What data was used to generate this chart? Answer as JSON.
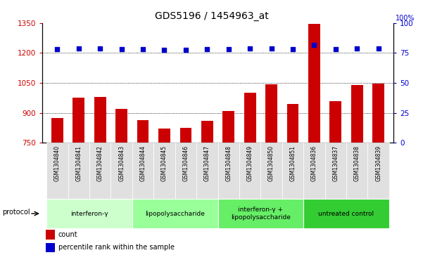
{
  "title": "GDS5196 / 1454963_at",
  "samples": [
    "GSM1304840",
    "GSM1304841",
    "GSM1304842",
    "GSM1304843",
    "GSM1304844",
    "GSM1304845",
    "GSM1304846",
    "GSM1304847",
    "GSM1304848",
    "GSM1304849",
    "GSM1304850",
    "GSM1304851",
    "GSM1304836",
    "GSM1304837",
    "GSM1304838",
    "GSM1304839"
  ],
  "bar_values": [
    875,
    975,
    978,
    920,
    865,
    820,
    825,
    860,
    910,
    1000,
    1042,
    945,
    1345,
    960,
    1040,
    1048
  ],
  "percentile_y": [
    1220,
    1222,
    1222,
    1220,
    1218,
    1215,
    1215,
    1218,
    1220,
    1222,
    1222,
    1220,
    1240,
    1220,
    1222,
    1222
  ],
  "groups": [
    {
      "label": "interferon-γ",
      "start": 0,
      "end": 4,
      "color": "#ccffcc"
    },
    {
      "label": "lipopolysaccharide",
      "start": 4,
      "end": 8,
      "color": "#99ff99"
    },
    {
      "label": "interferon-γ +\nlipopolysaccharide",
      "start": 8,
      "end": 12,
      "color": "#66ee66"
    },
    {
      "label": "untreated control",
      "start": 12,
      "end": 16,
      "color": "#33cc33"
    }
  ],
  "bar_color": "#cc0000",
  "dot_color": "#0000cc",
  "ylim_left": [
    750,
    1350
  ],
  "ylim_right": [
    0,
    100
  ],
  "yticks_left": [
    750,
    900,
    1050,
    1200,
    1350
  ],
  "yticks_right": [
    0,
    25,
    50,
    75,
    100
  ],
  "bg_color": "#ffffff",
  "tick_color_left": "#cc0000",
  "tick_color_right": "#0000cc",
  "grid_color": "#000000",
  "bar_bottom": 750,
  "figwidth": 6.01,
  "figheight": 3.63,
  "dpi": 100
}
